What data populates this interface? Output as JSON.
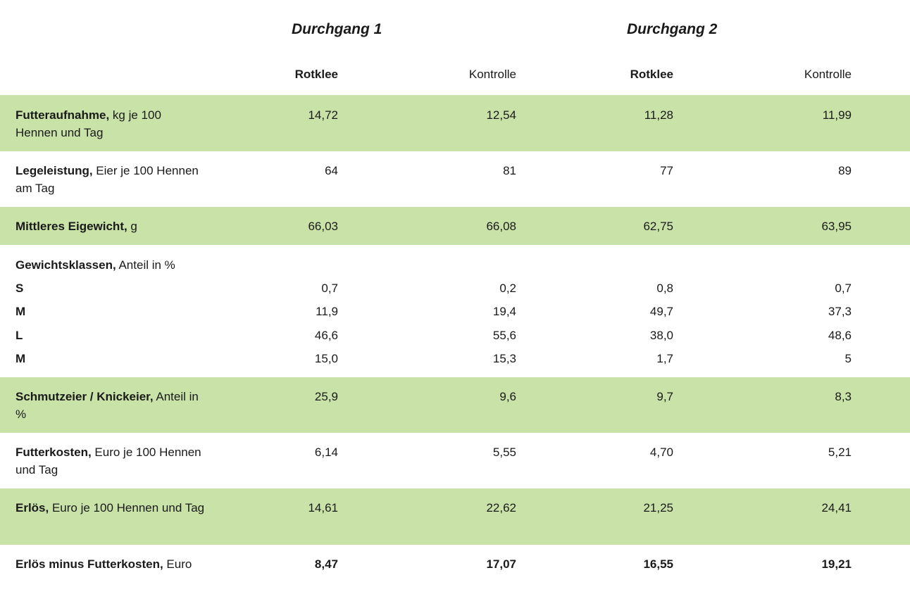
{
  "header": {
    "group1": "Durchgang 1",
    "group2": "Durchgang 2",
    "col1": "Rotklee",
    "col2": "Kontrolle",
    "col3": "Rotklee",
    "col4": "Kontrolle"
  },
  "rows": [
    {
      "label_bold": "Futteraufnahme,",
      "label_rest": " kg je 100 Hennen und Tag",
      "values": [
        "14,72",
        "12,54",
        "11,28",
        "11,99"
      ]
    },
    {
      "label_bold": "Legeleistung,",
      "label_rest": " Eier je 100 Hennen am Tag",
      "values": [
        "64",
        "81",
        "77",
        "89"
      ]
    },
    {
      "label_bold": "Mittleres Eigewicht,",
      "label_rest": " g",
      "values": [
        "66,03",
        "66,08",
        "62,75",
        "63,95"
      ]
    },
    {
      "label_bold": "Gewichtsklassen,",
      "label_rest": " Anteil in %"
    },
    {
      "label_bold": "Schmutzeier / Knickeier,",
      "label_rest": " Anteil in %",
      "values": [
        "25,9",
        "9,6",
        "9,7",
        "8,3"
      ]
    },
    {
      "label_bold": "Futterkosten,",
      "label_rest": " Euro je 100 Hennen und Tag",
      "values": [
        "6,14",
        "5,55",
        "4,70",
        "5,21"
      ]
    },
    {
      "label_bold": "Erlös,",
      "label_rest": " Euro je 100 Hennen und Tag",
      "values": [
        "14,61",
        "22,62",
        "21,25",
        "24,41"
      ]
    },
    {
      "label_bold": "Erlös minus Futterkosten,",
      "label_rest": " Euro",
      "values": [
        "8,47",
        "17,07",
        "16,55",
        "19,21"
      ]
    }
  ],
  "subrows": [
    {
      "label": "S",
      "values": [
        "0,7",
        "0,2",
        "0,8",
        "0,7"
      ]
    },
    {
      "label": "M",
      "values": [
        "11,9",
        "19,4",
        "49,7",
        "37,3"
      ]
    },
    {
      "label": "L",
      "values": [
        "46,6",
        "55,6",
        "38,0",
        "48,6"
      ]
    },
    {
      "label": "M",
      "values": [
        "15,0",
        "15,3",
        "1,7",
        "5"
      ]
    }
  ],
  "colors": {
    "band": "#c8e2a7",
    "text": "#1a1a1a"
  }
}
